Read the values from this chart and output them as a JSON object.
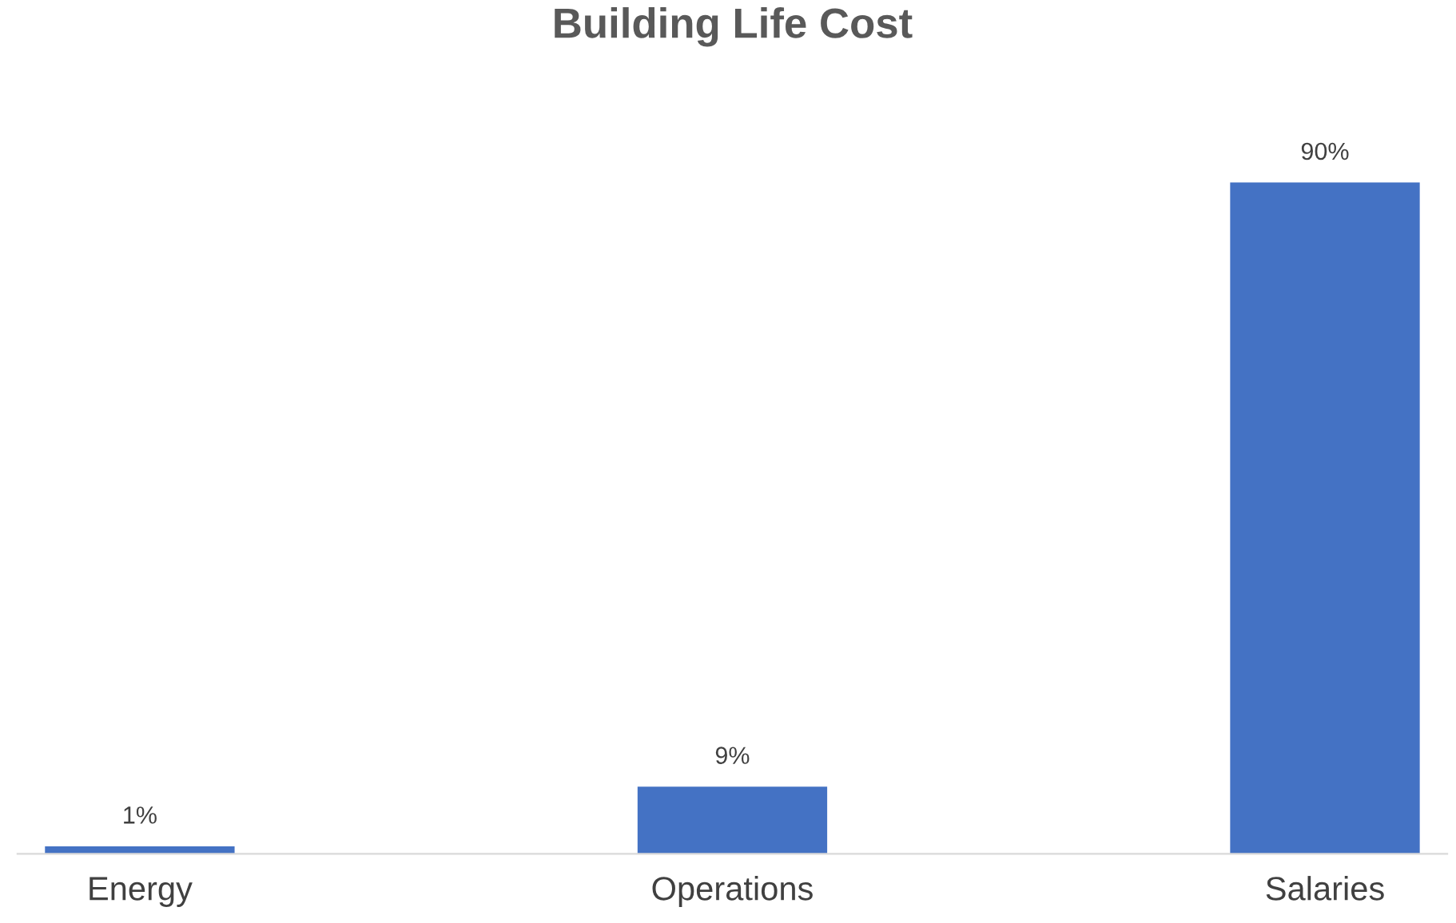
{
  "chart_data": {
    "type": "bar",
    "title": "Building Life Cost",
    "categories": [
      "Energy",
      "Operations",
      "Salaries"
    ],
    "values": [
      1,
      9,
      90
    ],
    "value_labels": [
      "1%",
      "9%",
      "90%"
    ],
    "color": "#4472c4",
    "grid": false,
    "legend": false
  }
}
